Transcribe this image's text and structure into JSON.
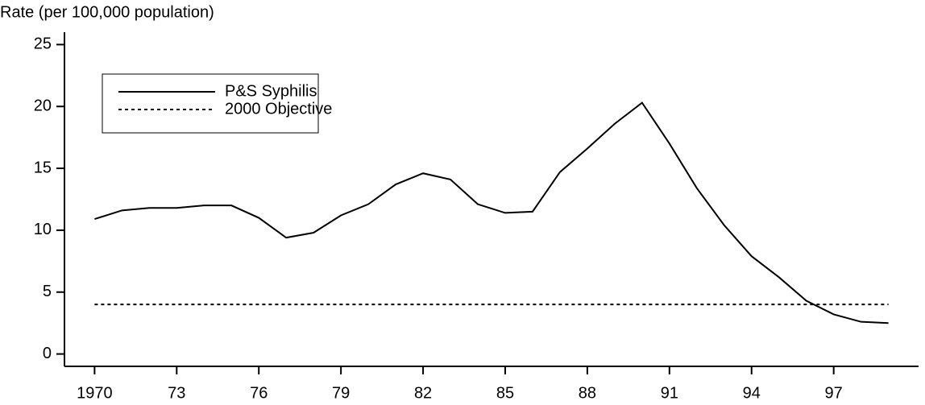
{
  "chart_data": {
    "type": "line",
    "y_label": "Rate (per 100,000 population)",
    "series": [
      {
        "name": "P&S Syphilis",
        "color": "#000000",
        "dash": "solid",
        "x": [
          1970,
          1971,
          1972,
          1973,
          1974,
          1975,
          1976,
          1977,
          1978,
          1979,
          1980,
          1981,
          1982,
          1983,
          1984,
          1985,
          1986,
          1987,
          1988,
          1989,
          1990,
          1991,
          1992,
          1993,
          1994,
          1995,
          1996,
          1997,
          1998,
          1999
        ],
        "values": [
          10.9,
          11.6,
          11.8,
          11.8,
          12.0,
          12.0,
          11.0,
          9.4,
          9.8,
          11.2,
          12.1,
          13.7,
          14.6,
          14.1,
          12.1,
          11.4,
          11.5,
          14.7,
          16.6,
          18.6,
          20.3,
          17.0,
          13.4,
          10.4,
          7.9,
          6.2,
          4.3,
          3.2,
          2.6,
          2.5
        ]
      },
      {
        "name": "2000 Objective",
        "color": "#000000",
        "dash": "dotted",
        "x": [
          1970,
          1999
        ],
        "values": [
          4,
          4
        ]
      }
    ],
    "xlim": [
      1968.9,
      2000.1
    ],
    "xticks": [
      1970,
      {
        "value": 1973,
        "label": "73"
      },
      {
        "value": 1976,
        "label": "76"
      },
      {
        "value": 1979,
        "label": "79"
      },
      {
        "value": 1982,
        "label": "82"
      },
      {
        "value": 1985,
        "label": "85"
      },
      {
        "value": 1988,
        "label": "88"
      },
      {
        "value": 1991,
        "label": "91"
      },
      {
        "value": 1994,
        "label": "94"
      },
      {
        "value": 1997,
        "label": "97"
      }
    ],
    "ylim": [
      -1,
      26
    ],
    "yticks": [
      0,
      5,
      10,
      15,
      20,
      25
    ],
    "legend": "upper left"
  }
}
